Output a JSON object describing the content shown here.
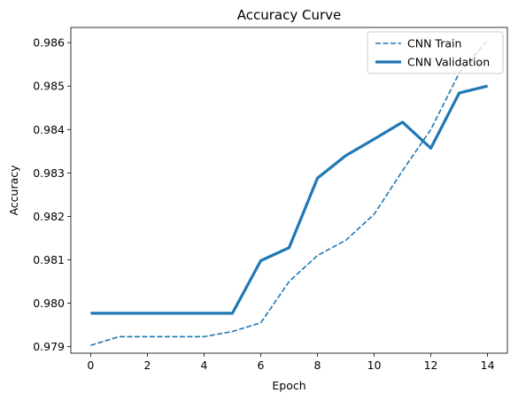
{
  "chart_data": {
    "type": "line",
    "title": "Accuracy Curve",
    "xlabel": "Epoch",
    "ylabel": "Accuracy",
    "x": [
      0,
      1,
      2,
      3,
      4,
      5,
      6,
      7,
      8,
      9,
      10,
      11,
      12,
      13,
      14
    ],
    "xlim": [
      -0.7,
      14.7
    ],
    "ylim": [
      0.97885,
      0.98635
    ],
    "xticks": [
      0,
      2,
      4,
      6,
      8,
      10,
      12,
      14
    ],
    "xtick_labels": [
      "0",
      "2",
      "4",
      "6",
      "8",
      "10",
      "12",
      "14"
    ],
    "yticks": [
      0.979,
      0.98,
      0.981,
      0.982,
      0.983,
      0.984,
      0.985,
      0.986
    ],
    "ytick_labels": [
      "0.979",
      "0.980",
      "0.981",
      "0.982",
      "0.983",
      "0.984",
      "0.985",
      "0.986"
    ],
    "grid": false,
    "legend_position": "top-right",
    "series": [
      {
        "name": "CNN Train",
        "style": "dashed",
        "color": "#1f77b4",
        "values": [
          0.97903,
          0.97923,
          0.97923,
          0.97923,
          0.97923,
          0.97935,
          0.97955,
          0.9805,
          0.9811,
          0.98145,
          0.98205,
          0.98305,
          0.984,
          0.9853,
          0.98605
        ]
      },
      {
        "name": "CNN Validation",
        "style": "solid",
        "color": "#1f77b4",
        "values": [
          0.97977,
          0.97977,
          0.97977,
          0.97977,
          0.97977,
          0.97977,
          0.98098,
          0.98128,
          0.98288,
          0.9834,
          0.98378,
          0.98417,
          0.98357,
          0.98484,
          0.985
        ]
      }
    ]
  }
}
